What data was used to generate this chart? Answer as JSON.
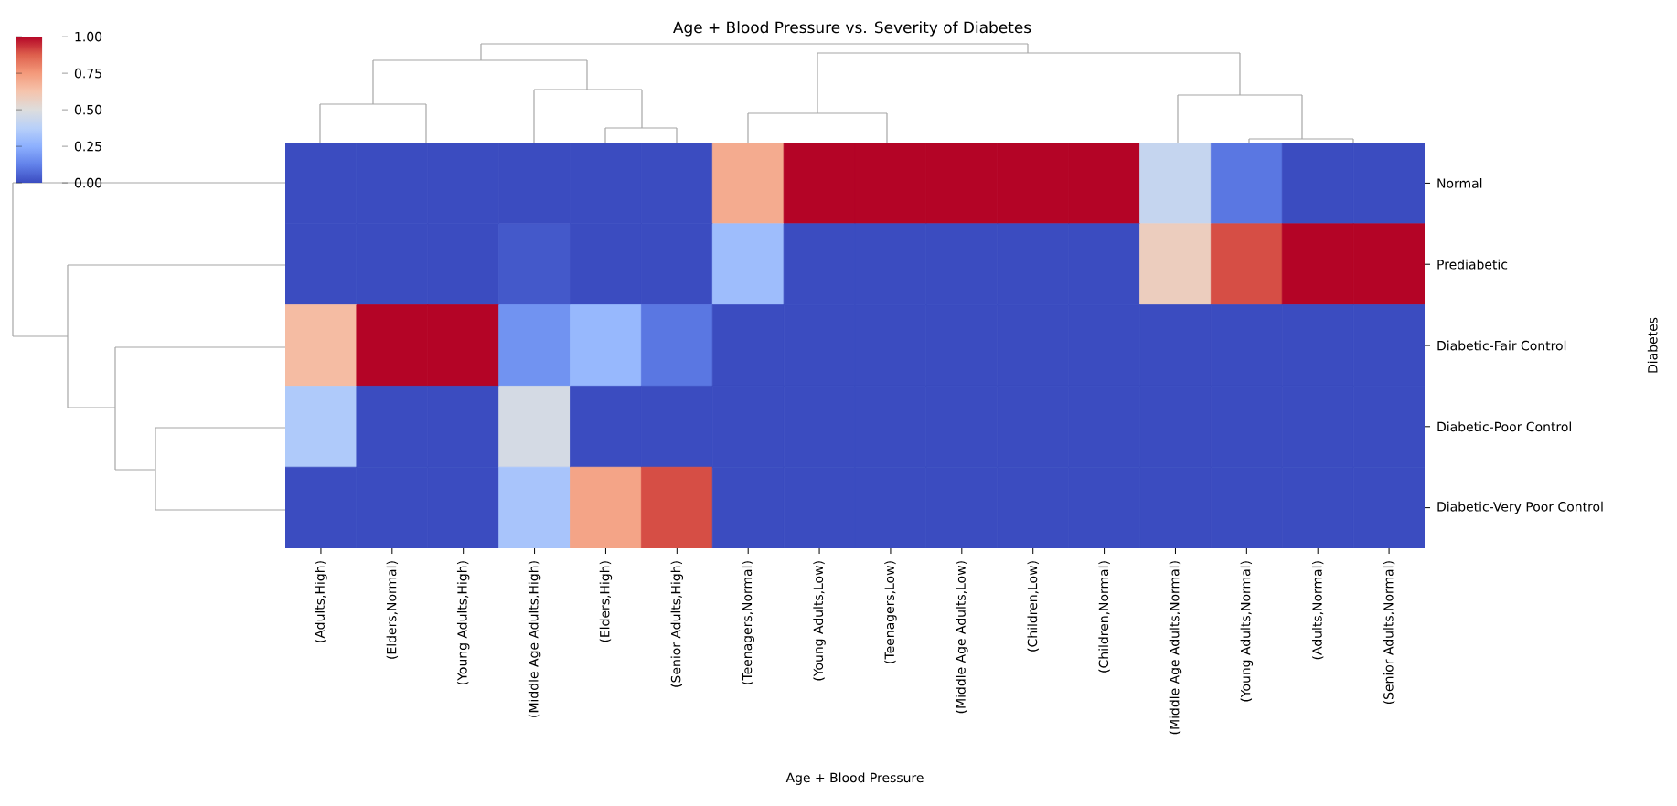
{
  "chart_data": {
    "type": "heatmap",
    "title": "Age + Blood Pressure vs. Severity of Diabetes",
    "xlabel": "Age + Blood Pressure",
    "ylabel": "Diabetes",
    "categories": [
      "(Adults,High)",
      "(Elders,Normal)",
      "(Young Adults,High)",
      "(Middle Age Adults,High)",
      "(Elders,High)",
      "(Senior Adults,High)",
      "(Teenagers,Normal)",
      "(Young Adults,Low)",
      "(Teenagers,Low)",
      "(Middle Age Adults,Low)",
      "(Children,Low)",
      "(Children,Normal)",
      "(Middle Age Adults,Normal)",
      "(Young Adults,Normal)",
      "(Adults,Normal)",
      "(Senior Adults,Normal)"
    ],
    "y_categories": [
      "Normal",
      "Prediabetic",
      "Diabetic-Fair Control",
      "Diabetic-Poor Control",
      "Diabetic-Very Poor Control"
    ],
    "cells": [
      [
        0,
        0,
        0,
        0,
        0,
        0,
        0.7,
        1,
        1,
        1,
        1,
        1,
        0.42,
        0.1,
        0,
        0
      ],
      [
        0,
        0,
        0,
        0.03,
        0,
        0,
        0.3,
        0,
        0,
        0,
        0,
        0,
        0.58,
        0.9,
        1,
        1
      ],
      [
        0.65,
        1,
        1,
        0.17,
        0.28,
        0.1,
        0,
        0,
        0,
        0,
        0,
        0,
        0,
        0,
        0,
        0
      ],
      [
        0.35,
        0,
        0,
        0.47,
        0,
        0,
        0,
        0,
        0,
        0,
        0,
        0,
        0,
        0,
        0,
        0
      ],
      [
        0,
        0,
        0,
        0.33,
        0.72,
        0.9,
        0,
        0,
        0,
        0,
        0,
        0,
        0,
        0,
        0,
        0
      ]
    ],
    "clim": [
      0,
      1
    ],
    "cticks": [
      {
        "value": 0,
        "label": "0.00"
      },
      {
        "value": 0.25,
        "label": "0.25"
      },
      {
        "value": 0.5,
        "label": "0.50"
      },
      {
        "value": 0.75,
        "label": "0.75"
      },
      {
        "value": 1,
        "label": "1.00"
      }
    ]
  }
}
